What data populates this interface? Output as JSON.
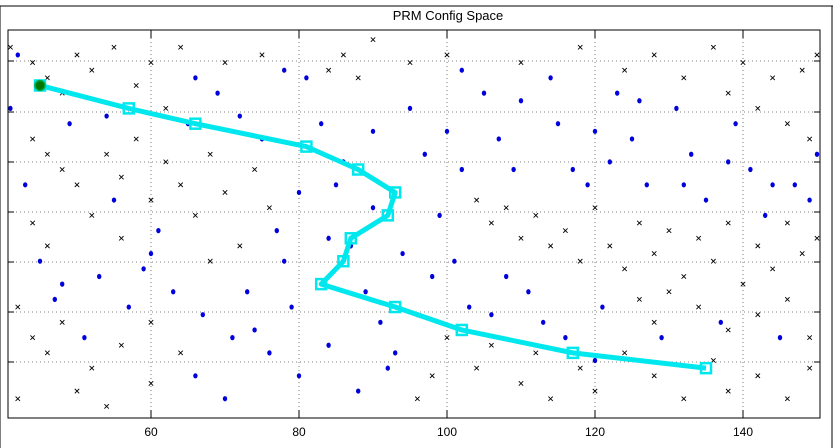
{
  "chart_data": {
    "type": "scatter",
    "title": "PRM Config Space",
    "xlabel": "",
    "ylabel": "",
    "xlim": [
      0,
      150
    ],
    "ylim": [
      0,
      50
    ],
    "x_ticks": [
      60,
      80,
      100,
      120,
      140
    ],
    "grid": true,
    "colors": {
      "free": "#0000dd",
      "collision": "#000000",
      "path": "#00e8ee",
      "start": "#007700"
    },
    "series": [
      {
        "marker": "x",
        "color": "#000000",
        "points": [
          [
            41,
            48
          ],
          [
            44,
            46
          ],
          [
            46,
            44
          ],
          [
            48,
            42
          ],
          [
            50,
            47
          ],
          [
            52,
            45
          ],
          [
            55,
            48
          ],
          [
            58,
            43
          ],
          [
            60,
            46
          ],
          [
            64,
            48
          ],
          [
            70,
            46
          ],
          [
            75,
            47
          ],
          [
            62,
            40
          ],
          [
            44,
            36
          ],
          [
            46,
            34
          ],
          [
            48,
            32
          ],
          [
            50,
            30
          ],
          [
            54,
            34
          ],
          [
            56,
            31
          ],
          [
            58,
            36
          ],
          [
            60,
            28
          ],
          [
            62,
            33
          ],
          [
            64,
            30
          ],
          [
            66,
            26
          ],
          [
            68,
            34
          ],
          [
            70,
            29
          ],
          [
            74,
            32
          ],
          [
            76,
            27
          ],
          [
            72,
            22
          ],
          [
            68,
            20
          ],
          [
            44,
            25
          ],
          [
            46,
            22
          ],
          [
            52,
            26
          ],
          [
            56,
            23
          ],
          [
            42,
            14
          ],
          [
            44,
            10
          ],
          [
            46,
            8
          ],
          [
            48,
            12
          ],
          [
            52,
            6
          ],
          [
            56,
            9
          ],
          [
            60,
            12
          ],
          [
            64,
            8
          ],
          [
            60,
            4
          ],
          [
            50,
            3
          ],
          [
            42,
            2
          ],
          [
            54,
            1
          ],
          [
            86,
            47
          ],
          [
            90,
            49
          ],
          [
            95,
            46
          ],
          [
            88,
            44
          ],
          [
            84,
            45
          ],
          [
            100,
            47
          ],
          [
            110,
            46
          ],
          [
            118,
            48
          ],
          [
            124,
            45
          ],
          [
            128,
            47
          ],
          [
            132,
            44
          ],
          [
            136,
            48
          ],
          [
            140,
            46
          ],
          [
            144,
            44
          ],
          [
            148,
            45
          ],
          [
            142,
            40
          ],
          [
            146,
            38
          ],
          [
            149,
            36
          ],
          [
            138,
            42
          ],
          [
            150,
            47
          ],
          [
            104,
            28
          ],
          [
            106,
            25
          ],
          [
            108,
            27
          ],
          [
            110,
            23
          ],
          [
            112,
            26
          ],
          [
            114,
            22
          ],
          [
            116,
            24
          ],
          [
            118,
            20
          ],
          [
            120,
            27
          ],
          [
            122,
            22
          ],
          [
            124,
            19
          ],
          [
            126,
            25
          ],
          [
            128,
            21
          ],
          [
            130,
            24
          ],
          [
            132,
            18
          ],
          [
            134,
            23
          ],
          [
            136,
            20
          ],
          [
            138,
            25
          ],
          [
            140,
            17
          ],
          [
            142,
            22
          ],
          [
            144,
            19
          ],
          [
            146,
            25
          ],
          [
            148,
            21
          ],
          [
            150,
            23
          ],
          [
            126,
            15
          ],
          [
            128,
            12
          ],
          [
            130,
            16
          ],
          [
            134,
            14
          ],
          [
            138,
            11
          ],
          [
            142,
            13
          ],
          [
            146,
            15
          ],
          [
            149,
            10
          ],
          [
            100,
            10
          ],
          [
            104,
            6
          ],
          [
            106,
            9
          ],
          [
            110,
            4
          ],
          [
            112,
            8
          ],
          [
            114,
            2
          ],
          [
            118,
            6
          ],
          [
            120,
            3
          ],
          [
            124,
            8
          ],
          [
            128,
            5
          ],
          [
            132,
            2
          ],
          [
            136,
            7
          ],
          [
            138,
            3
          ],
          [
            142,
            5
          ],
          [
            146,
            2
          ],
          [
            149,
            6
          ],
          [
            96,
            2
          ],
          [
            98,
            5
          ]
        ]
      },
      {
        "marker": "o",
        "color": "#0000dd",
        "points": [
          [
            41,
            40
          ],
          [
            43,
            30
          ],
          [
            45,
            20
          ],
          [
            47,
            15
          ],
          [
            49,
            38
          ],
          [
            51,
            10
          ],
          [
            53,
            18
          ],
          [
            55,
            28
          ],
          [
            57,
            14
          ],
          [
            59,
            19
          ],
          [
            61,
            24
          ],
          [
            63,
            16
          ],
          [
            65,
            38
          ],
          [
            67,
            13
          ],
          [
            69,
            42
          ],
          [
            71,
            10
          ],
          [
            73,
            16
          ],
          [
            75,
            36
          ],
          [
            77,
            24
          ],
          [
            79,
            14
          ],
          [
            81,
            44
          ],
          [
            83,
            38
          ],
          [
            85,
            30
          ],
          [
            87,
            22
          ],
          [
            89,
            16
          ],
          [
            91,
            12
          ],
          [
            93,
            8
          ],
          [
            95,
            40
          ],
          [
            97,
            34
          ],
          [
            99,
            26
          ],
          [
            101,
            20
          ],
          [
            103,
            14
          ],
          [
            105,
            42
          ],
          [
            107,
            36
          ],
          [
            109,
            32
          ],
          [
            111,
            16
          ],
          [
            113,
            12
          ],
          [
            115,
            38
          ],
          [
            117,
            32
          ],
          [
            119,
            30
          ],
          [
            121,
            14
          ],
          [
            123,
            42
          ],
          [
            125,
            36
          ],
          [
            127,
            30
          ],
          [
            129,
            10
          ],
          [
            131,
            40
          ],
          [
            133,
            34
          ],
          [
            135,
            28
          ],
          [
            137,
            12
          ],
          [
            139,
            38
          ],
          [
            141,
            32
          ],
          [
            143,
            26
          ],
          [
            145,
            10
          ],
          [
            147,
            30
          ],
          [
            149,
            28
          ],
          [
            42,
            47
          ],
          [
            48,
            17
          ],
          [
            54,
            39
          ],
          [
            60,
            21
          ],
          [
            66,
            44
          ],
          [
            72,
            39
          ],
          [
            78,
            45
          ],
          [
            84,
            23
          ],
          [
            90,
            37
          ],
          [
            96,
            13
          ],
          [
            102,
            45
          ],
          [
            108,
            18
          ],
          [
            114,
            44
          ],
          [
            120,
            37
          ],
          [
            126,
            41
          ],
          [
            132,
            30
          ],
          [
            138,
            33
          ],
          [
            144,
            30
          ],
          [
            150,
            34
          ],
          [
            80,
            5
          ],
          [
            84,
            9
          ],
          [
            88,
            3
          ],
          [
            92,
            6
          ],
          [
            76,
            8
          ],
          [
            70,
            2
          ],
          [
            66,
            5
          ],
          [
            90,
            27
          ],
          [
            86,
            33
          ],
          [
            80,
            29
          ],
          [
            78,
            20
          ],
          [
            74,
            11
          ],
          [
            98,
            18
          ],
          [
            94,
            21
          ],
          [
            100,
            37
          ],
          [
            102,
            32
          ],
          [
            110,
            41
          ],
          [
            116,
            10
          ],
          [
            122,
            33
          ],
          [
            120,
            7
          ],
          [
            106,
            13
          ]
        ]
      }
    ],
    "path": [
      [
        45,
        43
      ],
      [
        57,
        40
      ],
      [
        66,
        38
      ],
      [
        81,
        35
      ],
      [
        88,
        32
      ],
      [
        93,
        29
      ],
      [
        92,
        26
      ],
      [
        87,
        23
      ],
      [
        86,
        20
      ],
      [
        83,
        17
      ],
      [
        93,
        14
      ],
      [
        102,
        11
      ],
      [
        117,
        8
      ],
      [
        135,
        6
      ]
    ],
    "start": [
      45,
      43
    ]
  }
}
